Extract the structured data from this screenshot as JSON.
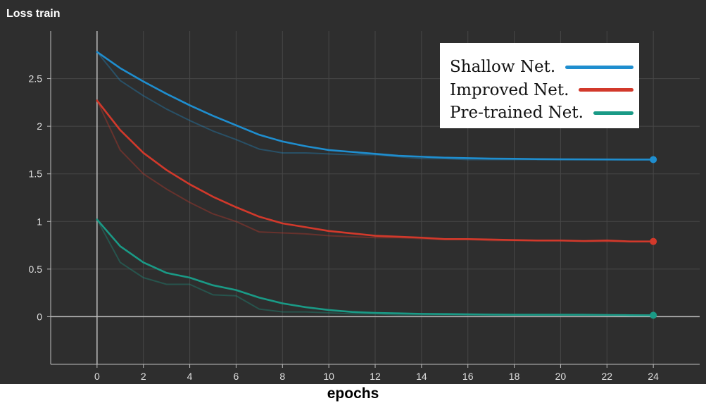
{
  "chart_data": {
    "type": "line",
    "title": "Loss train",
    "xlabel": "epochs",
    "ylabel": "",
    "xlim": [
      -2,
      26
    ],
    "ylim": [
      -0.5,
      3.0
    ],
    "xticks": [
      0,
      2,
      4,
      6,
      8,
      10,
      12,
      14,
      16,
      18,
      20,
      22,
      24
    ],
    "yticks": [
      0,
      0.5,
      1,
      1.5,
      2,
      2.5
    ],
    "ytick_labels": [
      "0",
      "0.5",
      "1",
      "1.5",
      "2",
      "2.5"
    ],
    "legend_position": "top-right",
    "x": [
      0,
      1,
      2,
      3,
      4,
      5,
      6,
      7,
      8,
      9,
      10,
      11,
      12,
      13,
      14,
      15,
      16,
      17,
      18,
      19,
      20,
      21,
      22,
      23,
      24
    ],
    "series": [
      {
        "name": "Shallow Net.",
        "color": "#1f8ecf",
        "values": [
          2.78,
          2.61,
          2.47,
          2.34,
          2.22,
          2.11,
          2.01,
          1.91,
          1.84,
          1.79,
          1.75,
          1.73,
          1.71,
          1.69,
          1.68,
          1.67,
          1.665,
          1.66,
          1.658,
          1.655,
          1.653,
          1.652,
          1.651,
          1.65,
          1.65
        ],
        "raw_values": [
          2.78,
          2.48,
          2.32,
          2.18,
          2.06,
          1.95,
          1.86,
          1.76,
          1.72,
          1.72,
          1.71,
          1.7,
          1.7,
          1.68,
          1.66,
          1.66,
          1.65,
          1.65,
          1.65,
          1.65,
          1.65,
          1.65,
          1.65,
          1.65,
          1.65
        ]
      },
      {
        "name": "Improved Net.",
        "color": "#d2392b",
        "values": [
          2.27,
          1.96,
          1.72,
          1.54,
          1.39,
          1.26,
          1.15,
          1.05,
          0.98,
          0.94,
          0.9,
          0.875,
          0.85,
          0.84,
          0.83,
          0.815,
          0.815,
          0.81,
          0.805,
          0.8,
          0.8,
          0.795,
          0.8,
          0.79,
          0.79
        ],
        "raw_values": [
          2.27,
          1.75,
          1.5,
          1.34,
          1.2,
          1.08,
          1.0,
          0.89,
          0.88,
          0.87,
          0.85,
          0.84,
          0.83,
          0.83,
          0.82,
          0.81,
          0.81,
          0.8,
          0.8,
          0.8,
          0.8,
          0.79,
          0.79,
          0.79,
          0.79
        ]
      },
      {
        "name": "Pre-trained Net.",
        "color": "#1a9a86",
        "values": [
          1.02,
          0.74,
          0.57,
          0.46,
          0.41,
          0.33,
          0.28,
          0.2,
          0.14,
          0.1,
          0.07,
          0.05,
          0.04,
          0.035,
          0.03,
          0.028,
          0.025,
          0.022,
          0.02,
          0.02,
          0.02,
          0.02,
          0.018,
          0.016,
          0.015
        ],
        "raw_values": [
          1.02,
          0.57,
          0.41,
          0.34,
          0.34,
          0.23,
          0.22,
          0.08,
          0.05,
          0.05,
          0.04,
          0.03,
          0.03,
          0.02,
          0.02,
          0.02,
          0.02,
          0.02,
          0.02,
          0.02,
          0.02,
          0.02,
          0.02,
          0.01,
          0.01
        ]
      }
    ]
  }
}
